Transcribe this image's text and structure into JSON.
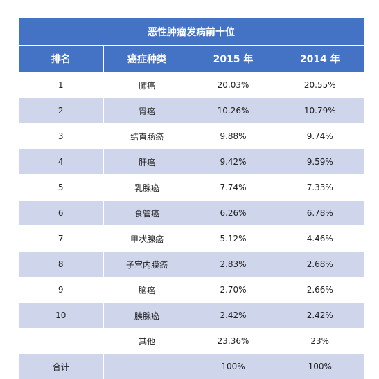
{
  "table": {
    "title": "恶性肿瘤发病前十位",
    "headers": [
      "排名",
      "癌症种类",
      "2015 年",
      "2014 年"
    ],
    "rows": [
      [
        "1",
        "肺癌",
        "20.03%",
        "20.55%"
      ],
      [
        "2",
        "胃癌",
        "10.26%",
        "10.79%"
      ],
      [
        "3",
        "结直肠癌",
        "9.88%",
        "9.74%"
      ],
      [
        "4",
        "肝癌",
        "9.42%",
        "9.59%"
      ],
      [
        "5",
        "乳腺癌",
        "7.74%",
        "7.33%"
      ],
      [
        "6",
        "食管癌",
        "6.26%",
        "6.78%"
      ],
      [
        "7",
        "甲状腺癌",
        "5.12%",
        "4.46%"
      ],
      [
        "8",
        "子宫内膜癌",
        "2.83%",
        "2.68%"
      ],
      [
        "9",
        "脑癌",
        "2.70%",
        "2.66%"
      ],
      [
        "10",
        "胰腺癌",
        "2.42%",
        "2.42%"
      ],
      [
        "",
        "其他",
        "23.36%",
        "23%"
      ],
      [
        "合计",
        "",
        "100%",
        "100%"
      ]
    ]
  },
  "colors": {
    "header_bg": "#4472c4",
    "header_text": "#ffffff",
    "band_light": "#ffffff",
    "band_dark": "#cfd5ea"
  }
}
